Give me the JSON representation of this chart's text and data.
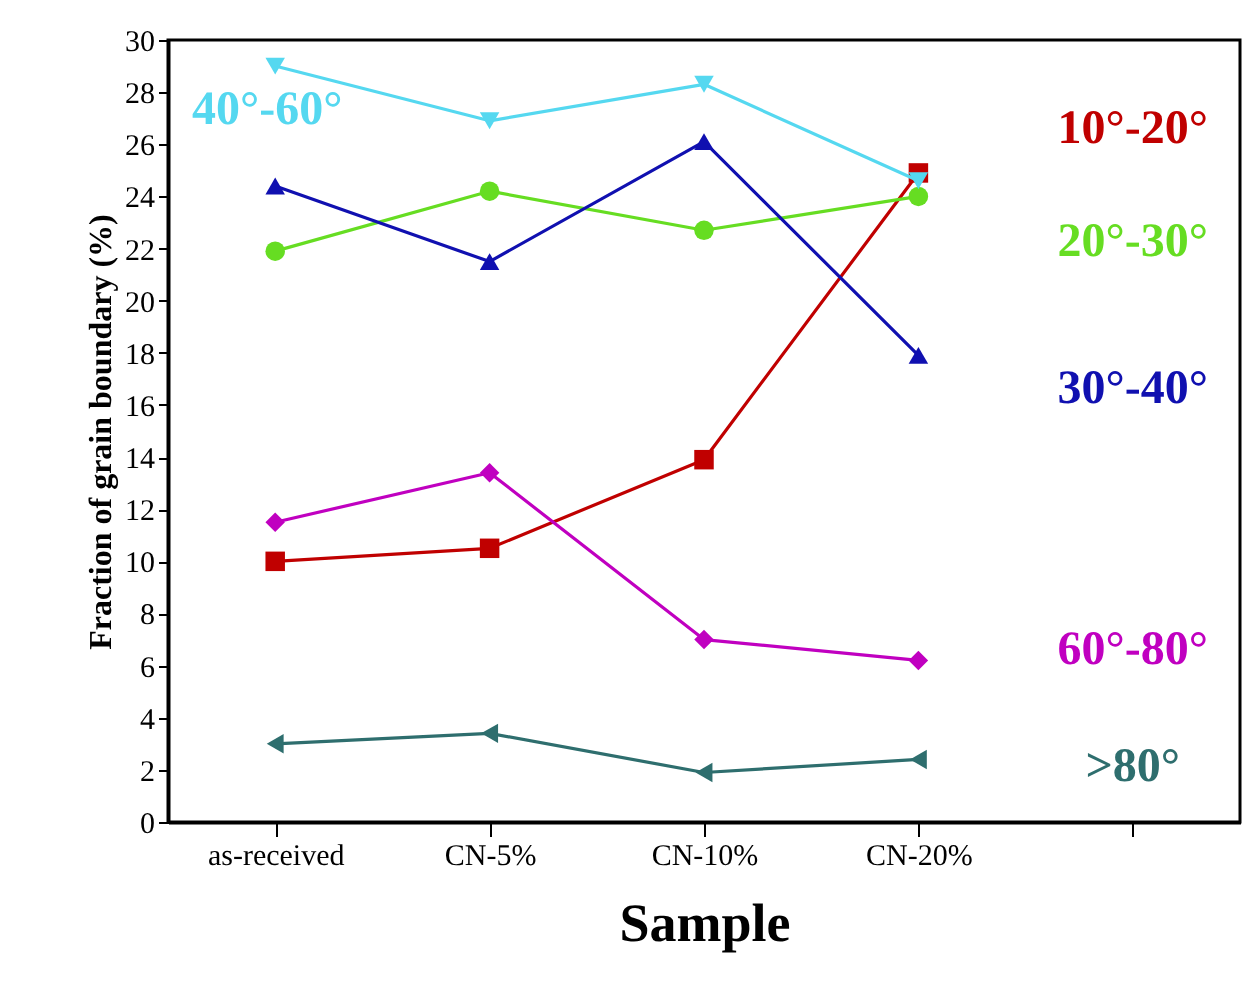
{
  "chart_data": {
    "type": "line",
    "xlabel": "Sample",
    "ylabel": "Fraction of grain boundary (%)",
    "categories": [
      "as-received",
      "CN-5%",
      "CN-10%",
      "CN-20%",
      null
    ],
    "ylim": [
      0,
      30
    ],
    "yticks": [
      0,
      2,
      4,
      6,
      8,
      10,
      12,
      14,
      16,
      18,
      20,
      22,
      24,
      26,
      28,
      30
    ],
    "grid": false,
    "series": [
      {
        "name": "10°-20°",
        "color": "#c00000",
        "marker": "square",
        "values": [
          10.0,
          10.5,
          13.9,
          24.9,
          null
        ]
      },
      {
        "name": "20°-30°",
        "color": "#66dd22",
        "marker": "circle",
        "values": [
          21.9,
          24.2,
          22.7,
          24.0,
          null
        ]
      },
      {
        "name": "30°-40°",
        "color": "#1010b0",
        "marker": "triangle",
        "values": [
          24.4,
          21.5,
          26.1,
          17.9,
          null
        ]
      },
      {
        "name": "40°-60°",
        "color": "#55d8f0",
        "marker": "triangle-down",
        "values": [
          29.0,
          26.9,
          28.3,
          24.6,
          null
        ]
      },
      {
        "name": "60°-80°",
        "color": "#c000c0",
        "marker": "diamond",
        "values": [
          11.5,
          13.4,
          7.0,
          6.2,
          null
        ]
      },
      {
        "name": ">80°",
        "color": "#2e6e6e",
        "marker": "triangle-left",
        "values": [
          3.0,
          3.4,
          1.9,
          2.4,
          null
        ]
      }
    ]
  }
}
